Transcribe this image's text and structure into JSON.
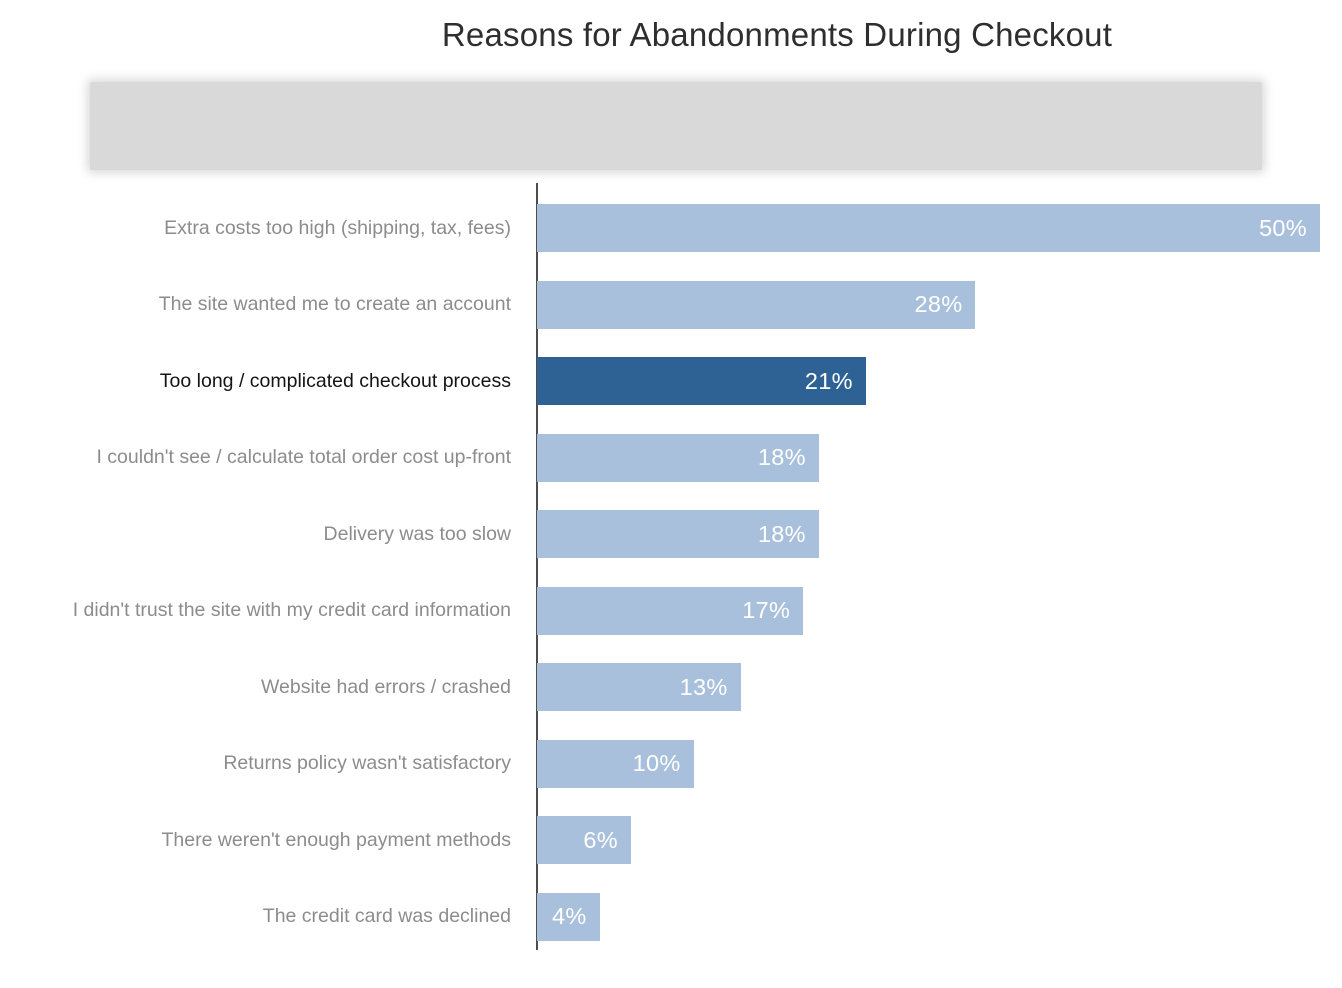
{
  "chart_data": {
    "type": "bar",
    "orientation": "horizontal",
    "title": "Reasons for Abandonments During Checkout",
    "subtitle_redacted": true,
    "categories": [
      "Extra costs too high (shipping, tax, fees)",
      "The site wanted me to create an account",
      "Too long / complicated checkout process",
      "I couldn't see / calculate total order cost up-front",
      "Delivery was too slow",
      "I didn't trust the site with my credit card information",
      "Website had errors / crashed",
      "Returns policy wasn't satisfactory",
      "There weren't enough payment methods",
      "The credit card was declined"
    ],
    "values": [
      50,
      28,
      21,
      18,
      18,
      17,
      13,
      10,
      6,
      4
    ],
    "value_suffix": "%",
    "highlight_index": 2,
    "xlim": [
      0,
      50
    ],
    "grid": false,
    "legend": false,
    "colors": {
      "bar": "#a9c0dc",
      "highlight_bar": "#2e6294",
      "value_label": "#ffffff",
      "category_label": "#8c8c8c",
      "highlight_category_label": "#141414",
      "axis_line": "#4d4d4d",
      "title": "#2e2e2e",
      "redacted_block": "#d9d9d9"
    }
  }
}
